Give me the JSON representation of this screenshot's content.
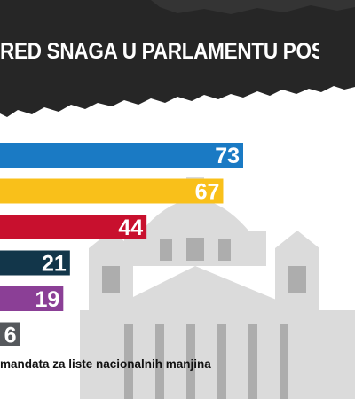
{
  "header": {
    "title": "RED SNAGA U PARLAMENTU POSLE IZB",
    "background": "#262626"
  },
  "footnote": "mandata za liste nacionalnih manjina",
  "chart_data": {
    "type": "bar",
    "orientation": "horizontal",
    "title": "RED SNAGA U PARLAMENTU POSLE IZB",
    "categories": [
      "",
      "",
      "",
      "",
      "",
      ""
    ],
    "values": [
      73,
      67,
      44,
      21,
      19,
      6
    ],
    "colors": [
      "#1a7ac4",
      "#f9c01a",
      "#c8102e",
      "#12364a",
      "#8b3f96",
      "#55585c"
    ],
    "xlim": [
      0,
      73
    ],
    "grid": false,
    "legend": "none"
  }
}
